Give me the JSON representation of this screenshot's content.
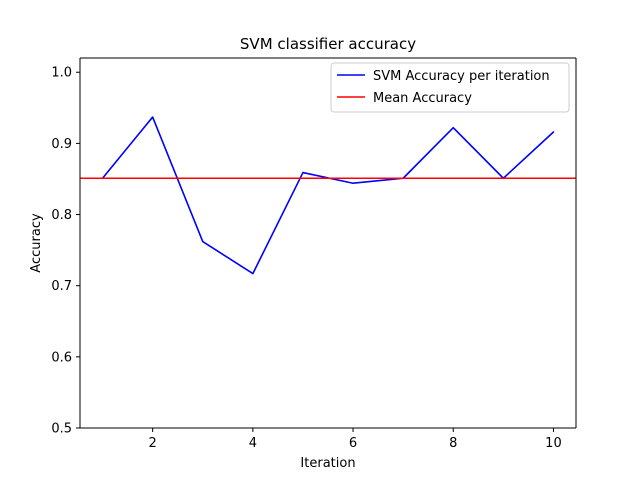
{
  "chart_data": {
    "type": "line",
    "title": "SVM classifier accuracy",
    "xlabel": "Iteration",
    "ylabel": "Accuracy",
    "xlim": [
      0.55,
      10.45
    ],
    "ylim": [
      0.5,
      1.02
    ],
    "xticks": [
      2,
      4,
      6,
      8,
      10
    ],
    "yticks": [
      0.5,
      0.6,
      0.7,
      0.8,
      0.9,
      1.0
    ],
    "xtick_labels": [
      "2",
      "4",
      "6",
      "8",
      "10"
    ],
    "ytick_labels": [
      "0.5",
      "0.6",
      "0.7",
      "0.8",
      "0.9",
      "1.0"
    ],
    "grid": false,
    "legend_position": "top-right",
    "series": [
      {
        "name": "SVM Accuracy per iteration",
        "color": "#0000ff",
        "x": [
          1,
          2,
          3,
          4,
          5,
          6,
          7,
          8,
          9,
          10
        ],
        "y": [
          0.851,
          0.937,
          0.762,
          0.717,
          0.859,
          0.844,
          0.851,
          0.922,
          0.851,
          0.916
        ]
      }
    ],
    "hlines": [
      {
        "name": "Mean Accuracy",
        "color": "#ff0000",
        "y": 0.851
      }
    ]
  }
}
